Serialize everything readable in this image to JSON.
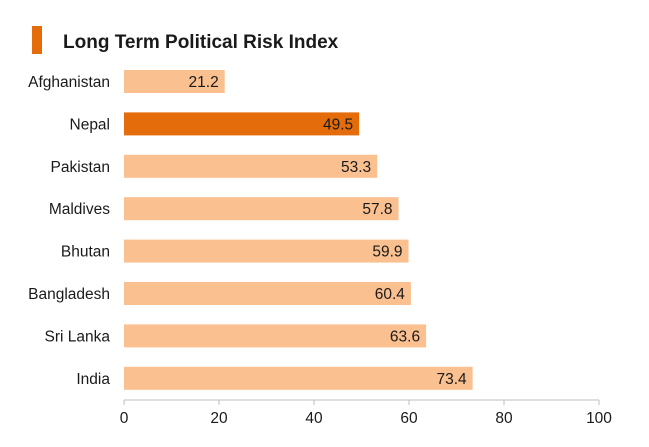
{
  "chart_data": {
    "type": "bar",
    "orientation": "horizontal",
    "title": "Long Term Political Risk Index",
    "categories": [
      "Afghanistan",
      "Nepal",
      "Pakistan",
      "Maldives",
      "Bhutan",
      "Bangladesh",
      "Sri Lanka",
      "India"
    ],
    "values": [
      21.2,
      49.5,
      53.3,
      57.8,
      59.9,
      60.4,
      63.6,
      73.4
    ],
    "value_labels": [
      "21.2",
      "49.5",
      "53.3",
      "57.8",
      "59.9",
      "60.4",
      "63.6",
      "73.4"
    ],
    "highlight": "Nepal",
    "xlim": [
      0,
      100
    ],
    "xticks": [
      0,
      20,
      40,
      60,
      80,
      100
    ],
    "xtick_labels": [
      "0",
      "20",
      "40",
      "60",
      "80",
      "100"
    ],
    "xlabel": "",
    "ylabel": "",
    "grid": false,
    "legend": "none"
  },
  "colors": {
    "accent": "#E46C0A",
    "bar": "#FAC090",
    "highlight_bar": "#E46C0A",
    "axis": "#bfbfbf",
    "text": "#1a1a1a"
  }
}
